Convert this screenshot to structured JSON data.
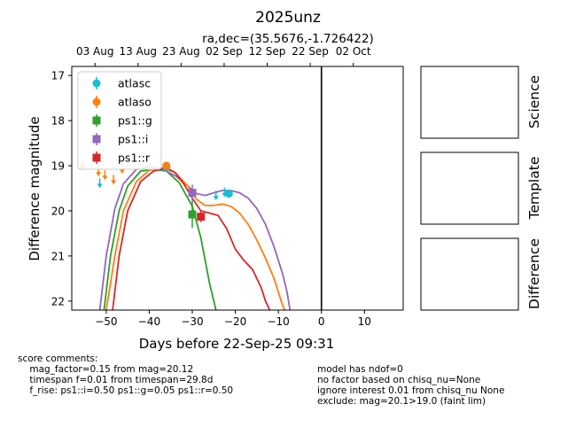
{
  "chart_data": {
    "type": "scatter",
    "title": "2025unz",
    "subtitle": "ra,dec=(35.5676,-1.726422)",
    "xlabel": "Days before 22-Sep-25 09:31",
    "ylabel": "Difference magnitude",
    "xlim": [
      -58,
      19
    ],
    "ylim": [
      22.2,
      16.8
    ],
    "y_inverted": true,
    "x_ticks": [
      -50,
      -40,
      -30,
      -20,
      -10,
      0,
      10
    ],
    "y_ticks": [
      17,
      18,
      19,
      20,
      21,
      22
    ],
    "top_axis_ticks": [
      {
        "x": -52.6,
        "label": "03 Aug"
      },
      {
        "x": -42.6,
        "label": "13 Aug"
      },
      {
        "x": -32.6,
        "label": "23 Aug"
      },
      {
        "x": -22.6,
        "label": "02 Sep"
      },
      {
        "x": -12.6,
        "label": "12 Sep"
      },
      {
        "x": -2.6,
        "label": "22 Sep"
      },
      {
        "x": 7.4,
        "label": "02 Oct"
      }
    ],
    "vline_x": 0,
    "legend": {
      "position": "top-left",
      "entries": [
        {
          "label": "atlasc",
          "color": "#17becf",
          "marker": "circle"
        },
        {
          "label": "atlaso",
          "color": "#ff7f0e",
          "marker": "circle"
        },
        {
          "label": "ps1::g",
          "color": "#2ca02c",
          "marker": "square"
        },
        {
          "label": "ps1::i",
          "color": "#9467bd",
          "marker": "square"
        },
        {
          "label": "ps1::r",
          "color": "#d62728",
          "marker": "square"
        }
      ]
    },
    "series": [
      {
        "name": "atlasc",
        "color": "#17becf",
        "marker": "circle",
        "points": [
          [
            -36,
            19.03,
            0.06
          ],
          [
            -21.5,
            19.62,
            0.08
          ]
        ],
        "upper_limits": [
          [
            -51.5,
            19.38
          ],
          [
            -24.5,
            19.65
          ],
          [
            -22.5,
            19.58
          ]
        ]
      },
      {
        "name": "atlaso",
        "color": "#ff7f0e",
        "marker": "circle",
        "points": [
          [
            -36,
            19.0,
            0.06
          ]
        ],
        "upper_limits": [
          [
            -55.5,
            18.98
          ],
          [
            -51.8,
            19.12
          ],
          [
            -50.3,
            19.2
          ],
          [
            -48.3,
            19.3
          ],
          [
            -46.3,
            19.06
          ]
        ]
      },
      {
        "name": "ps1::g",
        "color": "#2ca02c",
        "marker": "square",
        "points": [
          [
            -30,
            20.08,
            0.3
          ]
        ]
      },
      {
        "name": "ps1::i",
        "color": "#9467bd",
        "marker": "square",
        "points": [
          [
            -30,
            19.6,
            0.18
          ]
        ]
      },
      {
        "name": "ps1::r",
        "color": "#d62728",
        "marker": "square",
        "points": [
          [
            -28,
            20.13,
            0.12
          ]
        ]
      }
    ],
    "model_curves": [
      {
        "name": "ps1::g",
        "color": "#2ca02c",
        "x": [
          -50.5,
          -49,
          -47,
          -45,
          -42,
          -39,
          -36,
          -33,
          -30,
          -28,
          -26,
          -24.5
        ],
        "y": [
          22.2,
          21.0,
          20.0,
          19.45,
          19.12,
          19.08,
          19.12,
          19.38,
          19.9,
          20.6,
          21.6,
          22.2
        ]
      },
      {
        "name": "ps1::i",
        "color": "#9467bd",
        "x": [
          -51.5,
          -50,
          -48,
          -46,
          -43,
          -40,
          -37,
          -34,
          -31,
          -29,
          -27,
          -25,
          -23,
          -21,
          -19,
          -17,
          -15,
          -13,
          -11,
          -9,
          -8,
          -7.3
        ],
        "y": [
          22.2,
          21.0,
          19.95,
          19.4,
          19.08,
          19.02,
          19.08,
          19.22,
          19.45,
          19.62,
          19.66,
          19.6,
          19.55,
          19.55,
          19.6,
          19.72,
          19.95,
          20.3,
          20.8,
          21.4,
          21.8,
          22.2
        ]
      },
      {
        "name": "atlaso",
        "color": "#ff7f0e",
        "x": [
          -50,
          -48,
          -46,
          -43,
          -40,
          -37,
          -34,
          -31,
          -29,
          -27,
          -25,
          -23,
          -21,
          -19,
          -17,
          -15,
          -13,
          -11,
          -10,
          -9,
          -8.5
        ],
        "y": [
          22.2,
          21.0,
          20.0,
          19.35,
          19.1,
          19.05,
          19.15,
          19.45,
          19.75,
          19.88,
          19.88,
          19.85,
          19.9,
          20.05,
          20.3,
          20.65,
          21.05,
          21.5,
          21.8,
          22.1,
          22.2
        ]
      },
      {
        "name": "ps1::r",
        "color": "#d62728",
        "x": [
          -48.5,
          -47,
          -45,
          -42,
          -39,
          -36,
          -34,
          -32,
          -30,
          -28,
          -26,
          -24,
          -22,
          -20,
          -18,
          -16,
          -14,
          -13,
          -12
        ],
        "y": [
          22.2,
          21.0,
          20.0,
          19.35,
          19.12,
          19.05,
          19.15,
          19.4,
          19.72,
          20.0,
          20.05,
          20.1,
          20.4,
          20.85,
          21.1,
          21.3,
          21.7,
          22.0,
          22.2
        ]
      }
    ],
    "side_panels": [
      "Science",
      "Template",
      "Difference"
    ],
    "grid": false
  },
  "comments": {
    "left": [
      "score comments:",
      "    mag_factor=0.15 from mag=20.12",
      "    timespan f=0.01 from timespan=29.8d",
      "    f_rise: ps1::i=0.50 ps1::g=0.05 ps1::r=0.50"
    ],
    "right": [
      "model has ndof=0",
      "no factor based on chisq_nu=None",
      "ignore interest 0.01 from chisq_nu None",
      "exclude: mag=20.1>19.0 (faint lim)"
    ]
  }
}
